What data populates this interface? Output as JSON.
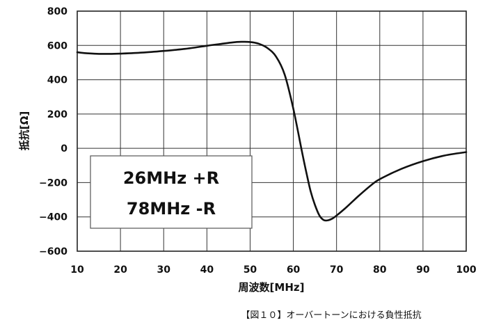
{
  "chart_data": {
    "type": "line",
    "xlabel": "周波数[MHz]",
    "ylabel": "抵抗[Ω]",
    "xlim": [
      10,
      100
    ],
    "ylim": [
      -600,
      800
    ],
    "x_ticks": [
      "10",
      "20",
      "30",
      "40",
      "50",
      "60",
      "70",
      "80",
      "90",
      "100"
    ],
    "y_ticks": [
      "800",
      "600",
      "400",
      "200",
      "0",
      "−200",
      "−400",
      "−600"
    ],
    "grid": true,
    "annotations": [
      "26MHz +R",
      "78MHz -R"
    ],
    "caption": "【図１０】オーバートーンにおける負性抵抗",
    "series": [
      {
        "x": [
          10,
          12,
          15,
          18,
          20,
          25,
          30,
          35,
          40,
          43,
          46,
          48,
          50,
          52,
          54,
          56,
          58,
          60,
          62,
          63,
          64,
          65,
          66,
          67,
          68,
          69,
          70,
          72,
          75,
          78,
          80,
          85,
          90,
          95,
          100
        ],
        "values": [
          560,
          555,
          551,
          551,
          552,
          558,
          568,
          580,
          598,
          608,
          618,
          621,
          620,
          610,
          585,
          535,
          430,
          230,
          -20,
          -140,
          -250,
          -330,
          -390,
          -418,
          -420,
          -410,
          -392,
          -350,
          -280,
          -215,
          -180,
          -120,
          -75,
          -42,
          -22
        ]
      }
    ]
  }
}
